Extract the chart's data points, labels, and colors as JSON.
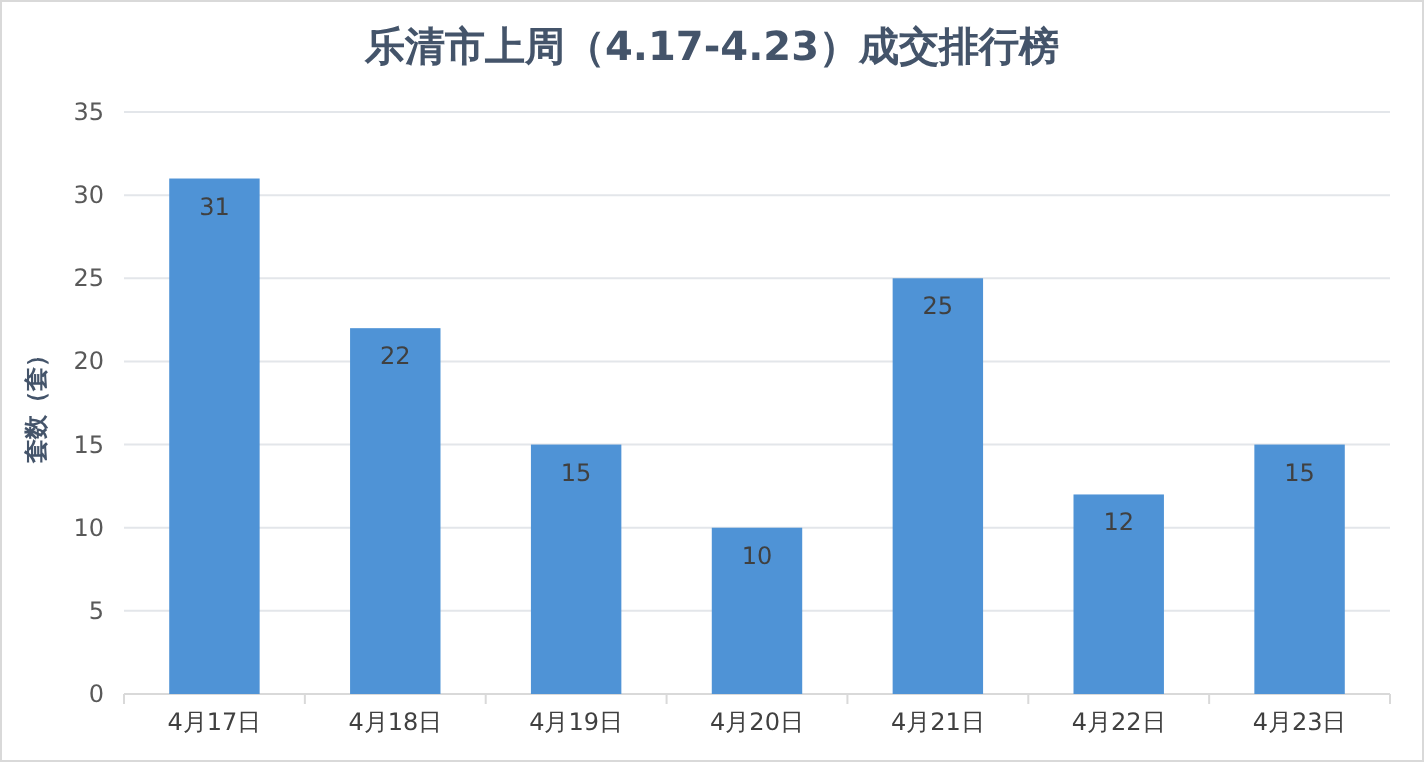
{
  "chart_data": {
    "type": "bar",
    "title": "乐清市上周（4.17-4.23）成交排行榜",
    "ylabel": "套数（套）",
    "categories": [
      "4月17日",
      "4月18日",
      "4月19日",
      "4月20日",
      "4月21日",
      "4月22日",
      "4月23日"
    ],
    "values": [
      31,
      22,
      15,
      10,
      25,
      12,
      15
    ],
    "color": "#4f93d6",
    "ylim": [
      0,
      35
    ],
    "yticks": [
      0,
      5,
      10,
      15,
      20,
      25,
      30,
      35
    ],
    "grid": "y",
    "data_labels": true
  }
}
